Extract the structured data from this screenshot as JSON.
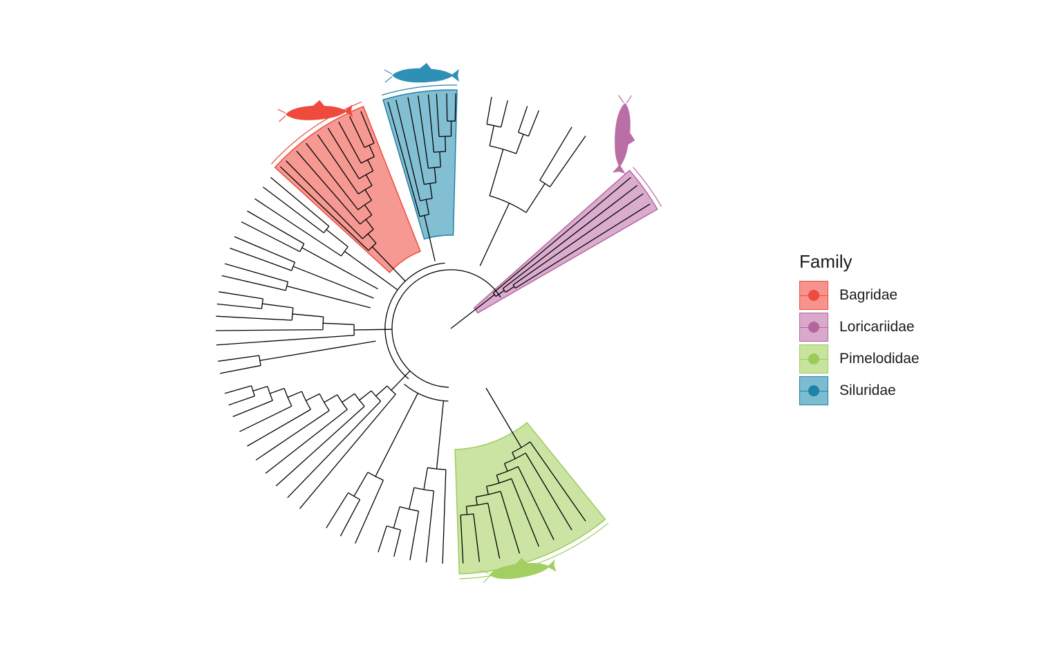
{
  "legend": {
    "title": "Family",
    "items": [
      {
        "label": "Bagridae",
        "fill": "#F5938C",
        "stroke": "#EE4B3E",
        "dot": "#EE4B3E"
      },
      {
        "label": "Loricariidae",
        "fill": "#D8A9CB",
        "stroke": "#B5659E",
        "dot": "#B5659E"
      },
      {
        "label": "Pimelodidae",
        "fill": "#C8E39E",
        "stroke": "#9DCB5A",
        "dot": "#9DCB5A"
      },
      {
        "label": "Siluridae",
        "fill": "#7CBCD1",
        "stroke": "#1F82A8",
        "dot": "#1F82A8"
      }
    ]
  },
  "tree": {
    "layout": "circular",
    "branch_color": "#000000",
    "clades": [
      {
        "family": "Bagridae",
        "silhouette": "bagrid-catfish-silhouette",
        "color": "#EE4B3E"
      },
      {
        "family": "Siluridae",
        "silhouette": "silurid-catfish-silhouette",
        "color": "#2E90B5"
      },
      {
        "family": "Loricariidae",
        "silhouette": "loricariid-catfish-silhouette",
        "color": "#B96FA5"
      },
      {
        "family": "Pimelodidae",
        "silhouette": "pimelodid-catfish-silhouette",
        "color": "#A3CF62"
      }
    ]
  }
}
